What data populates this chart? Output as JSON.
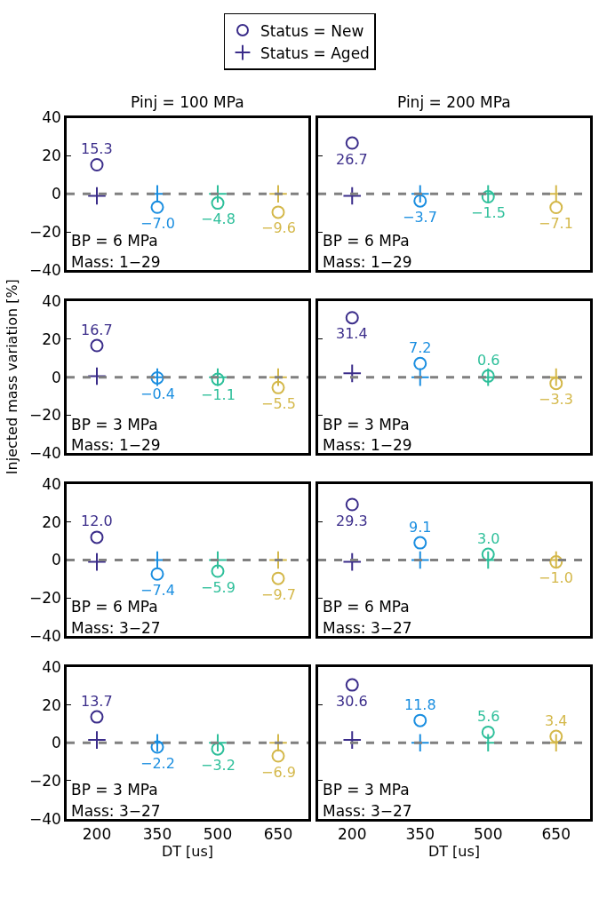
{
  "chart_data": [
    {
      "type": "scatter",
      "title": "Pinj = 100 MPa",
      "legend": "top",
      "categories": [
        "200",
        "350",
        "500",
        "650"
      ],
      "ylim": [
        -40,
        40
      ],
      "yticks": [
        -40,
        -20,
        0,
        20,
        40
      ],
      "tick_labels": "y",
      "annotations": [
        "BP = 6 MPa",
        "Mass: 1−29"
      ],
      "ref_lines": [
        {
          "axis": "y",
          "value": 0,
          "color": "#808080",
          "line_style": "dashed"
        }
      ],
      "series": [
        {
          "name": "Status = New",
          "marker": "circle",
          "colors": [
            "#3b2d8a",
            "#1a8ee0",
            "#2dbf9a",
            "#d4b84a"
          ],
          "values": [
            15.3,
            -7.0,
            -4.8,
            -9.6
          ],
          "value_labels": [
            "15.3",
            "−7.0",
            "−4.8",
            "−9.6"
          ]
        },
        {
          "name": "Status = Aged",
          "marker": "cross",
          "colors": [
            "#3b2d8a",
            "#1a8ee0",
            "#2dbf9a",
            "#d4b84a"
          ],
          "values": [
            -1,
            0,
            0,
            0
          ]
        }
      ]
    },
    {
      "type": "scatter",
      "title": "Pinj = 200 MPa",
      "categories": [
        "200",
        "350",
        "500",
        "650"
      ],
      "ylim": [
        -40,
        40
      ],
      "yticks": [
        -40,
        -20,
        0,
        20,
        40
      ],
      "tick_labels": false,
      "annotations": [
        "BP = 6 MPa",
        "Mass: 1−29"
      ],
      "ref_lines": [
        {
          "axis": "y",
          "value": 0,
          "color": "#808080",
          "line_style": "dashed"
        }
      ],
      "series": [
        {
          "marker": "circle",
          "colors": [
            "#3b2d8a",
            "#1a8ee0",
            "#2dbf9a",
            "#d4b84a"
          ],
          "values": [
            26.7,
            -3.7,
            -1.5,
            -7.1
          ],
          "value_labels": [
            "26.7",
            "−3.7",
            "−1.5",
            "−7.1"
          ]
        },
        {
          "marker": "cross",
          "colors": [
            "#3b2d8a",
            "#1a8ee0",
            "#2dbf9a",
            "#d4b84a"
          ],
          "values": [
            -1,
            0,
            0,
            0
          ]
        }
      ]
    },
    {
      "type": "scatter",
      "categories": [
        "200",
        "350",
        "500",
        "650"
      ],
      "ylim": [
        -40,
        40
      ],
      "yticks": [
        -40,
        -20,
        0,
        20,
        40
      ],
      "tick_labels": "y",
      "ylabel": "Injected mass variation [%]",
      "annotations": [
        "BP = 3 MPa",
        "Mass: 1−29"
      ],
      "ref_lines": [
        {
          "axis": "y",
          "value": 0,
          "color": "#808080",
          "line_style": "dashed"
        }
      ],
      "series": [
        {
          "marker": "circle",
          "colors": [
            "#3b2d8a",
            "#1a8ee0",
            "#2dbf9a",
            "#d4b84a"
          ],
          "values": [
            16.7,
            -0.4,
            -1.1,
            -5.5
          ],
          "value_labels": [
            "16.7",
            "−0.4",
            "−1.1",
            "−5.5"
          ]
        },
        {
          "marker": "cross",
          "colors": [
            "#3b2d8a",
            "#1a8ee0",
            "#2dbf9a",
            "#d4b84a"
          ],
          "values": [
            0.5,
            0,
            0,
            0
          ]
        }
      ]
    },
    {
      "type": "scatter",
      "categories": [
        "200",
        "350",
        "500",
        "650"
      ],
      "ylim": [
        -40,
        40
      ],
      "yticks": [
        -40,
        -20,
        0,
        20,
        40
      ],
      "tick_labels": false,
      "annotations": [
        "BP = 3 MPa",
        "Mass: 1−29"
      ],
      "ref_lines": [
        {
          "axis": "y",
          "value": 0,
          "color": "#808080",
          "line_style": "dashed"
        }
      ],
      "series": [
        {
          "marker": "circle",
          "colors": [
            "#3b2d8a",
            "#1a8ee0",
            "#2dbf9a",
            "#d4b84a"
          ],
          "values": [
            31.4,
            7.2,
            0.6,
            -3.3
          ],
          "value_labels": [
            "31.4",
            "7.2",
            "0.6",
            "−3.3"
          ]
        },
        {
          "marker": "cross",
          "colors": [
            "#3b2d8a",
            "#1a8ee0",
            "#2dbf9a",
            "#d4b84a"
          ],
          "values": [
            2,
            0,
            0,
            0
          ]
        }
      ]
    },
    {
      "type": "scatter",
      "categories": [
        "200",
        "350",
        "500",
        "650"
      ],
      "ylim": [
        -40,
        40
      ],
      "yticks": [
        -40,
        -20,
        0,
        20,
        40
      ],
      "tick_labels": "y",
      "annotations": [
        "BP = 6 MPa",
        "Mass: 3−27"
      ],
      "ref_lines": [
        {
          "axis": "y",
          "value": 0,
          "color": "#808080",
          "line_style": "dashed"
        }
      ],
      "series": [
        {
          "marker": "circle",
          "colors": [
            "#3b2d8a",
            "#1a8ee0",
            "#2dbf9a",
            "#d4b84a"
          ],
          "values": [
            12.0,
            -7.4,
            -5.9,
            -9.7
          ],
          "value_labels": [
            "12.0",
            "−7.4",
            "−5.9",
            "−9.7"
          ]
        },
        {
          "marker": "cross",
          "colors": [
            "#3b2d8a",
            "#1a8ee0",
            "#2dbf9a",
            "#d4b84a"
          ],
          "values": [
            -1,
            0,
            0,
            0
          ]
        }
      ]
    },
    {
      "type": "scatter",
      "categories": [
        "200",
        "350",
        "500",
        "650"
      ],
      "ylim": [
        -40,
        40
      ],
      "yticks": [
        -40,
        -20,
        0,
        20,
        40
      ],
      "tick_labels": false,
      "annotations": [
        "BP = 6 MPa",
        "Mass: 3−27"
      ],
      "ref_lines": [
        {
          "axis": "y",
          "value": 0,
          "color": "#808080",
          "line_style": "dashed"
        }
      ],
      "series": [
        {
          "marker": "circle",
          "colors": [
            "#3b2d8a",
            "#1a8ee0",
            "#2dbf9a",
            "#d4b84a"
          ],
          "values": [
            29.3,
            9.1,
            3.0,
            -1.0
          ],
          "value_labels": [
            "29.3",
            "9.1",
            "3.0",
            "−1.0"
          ]
        },
        {
          "marker": "cross",
          "colors": [
            "#3b2d8a",
            "#1a8ee0",
            "#2dbf9a",
            "#d4b84a"
          ],
          "values": [
            -1,
            0,
            0,
            0
          ]
        }
      ]
    },
    {
      "type": "scatter",
      "xlabel": "DT [us]",
      "categories": [
        "200",
        "350",
        "500",
        "650"
      ],
      "ylim": [
        -40,
        40
      ],
      "yticks": [
        -40,
        -20,
        0,
        20,
        40
      ],
      "annotations": [
        "BP = 3 MPa",
        "Mass: 3−27"
      ],
      "ref_lines": [
        {
          "axis": "y",
          "value": 0,
          "color": "#808080",
          "line_style": "dashed"
        }
      ],
      "series": [
        {
          "marker": "circle",
          "colors": [
            "#3b2d8a",
            "#1a8ee0",
            "#2dbf9a",
            "#d4b84a"
          ],
          "values": [
            13.7,
            -2.2,
            -3.2,
            -6.9
          ],
          "value_labels": [
            "13.7",
            "−2.2",
            "−3.2",
            "−6.9"
          ]
        },
        {
          "marker": "cross",
          "colors": [
            "#3b2d8a",
            "#1a8ee0",
            "#2dbf9a",
            "#d4b84a"
          ],
          "values": [
            1.5,
            0,
            0,
            0
          ]
        }
      ]
    },
    {
      "type": "scatter",
      "xlabel": "DT [us]",
      "categories": [
        "200",
        "350",
        "500",
        "650"
      ],
      "ylim": [
        -40,
        40
      ],
      "yticks": [
        -40,
        -20,
        0,
        20,
        40
      ],
      "tick_labels": "x",
      "annotations": [
        "BP = 3 MPa",
        "Mass: 3−27"
      ],
      "ref_lines": [
        {
          "axis": "y",
          "value": 0,
          "color": "#808080",
          "line_style": "dashed"
        }
      ],
      "series": [
        {
          "marker": "circle",
          "colors": [
            "#3b2d8a",
            "#1a8ee0",
            "#2dbf9a",
            "#d4b84a"
          ],
          "values": [
            30.6,
            11.8,
            5.6,
            3.4
          ],
          "value_labels": [
            "30.6",
            "11.8",
            "5.6",
            "3.4"
          ]
        },
        {
          "marker": "cross",
          "colors": [
            "#3b2d8a",
            "#1a8ee0",
            "#2dbf9a",
            "#d4b84a"
          ],
          "values": [
            1.5,
            0,
            0,
            0
          ]
        }
      ]
    }
  ]
}
